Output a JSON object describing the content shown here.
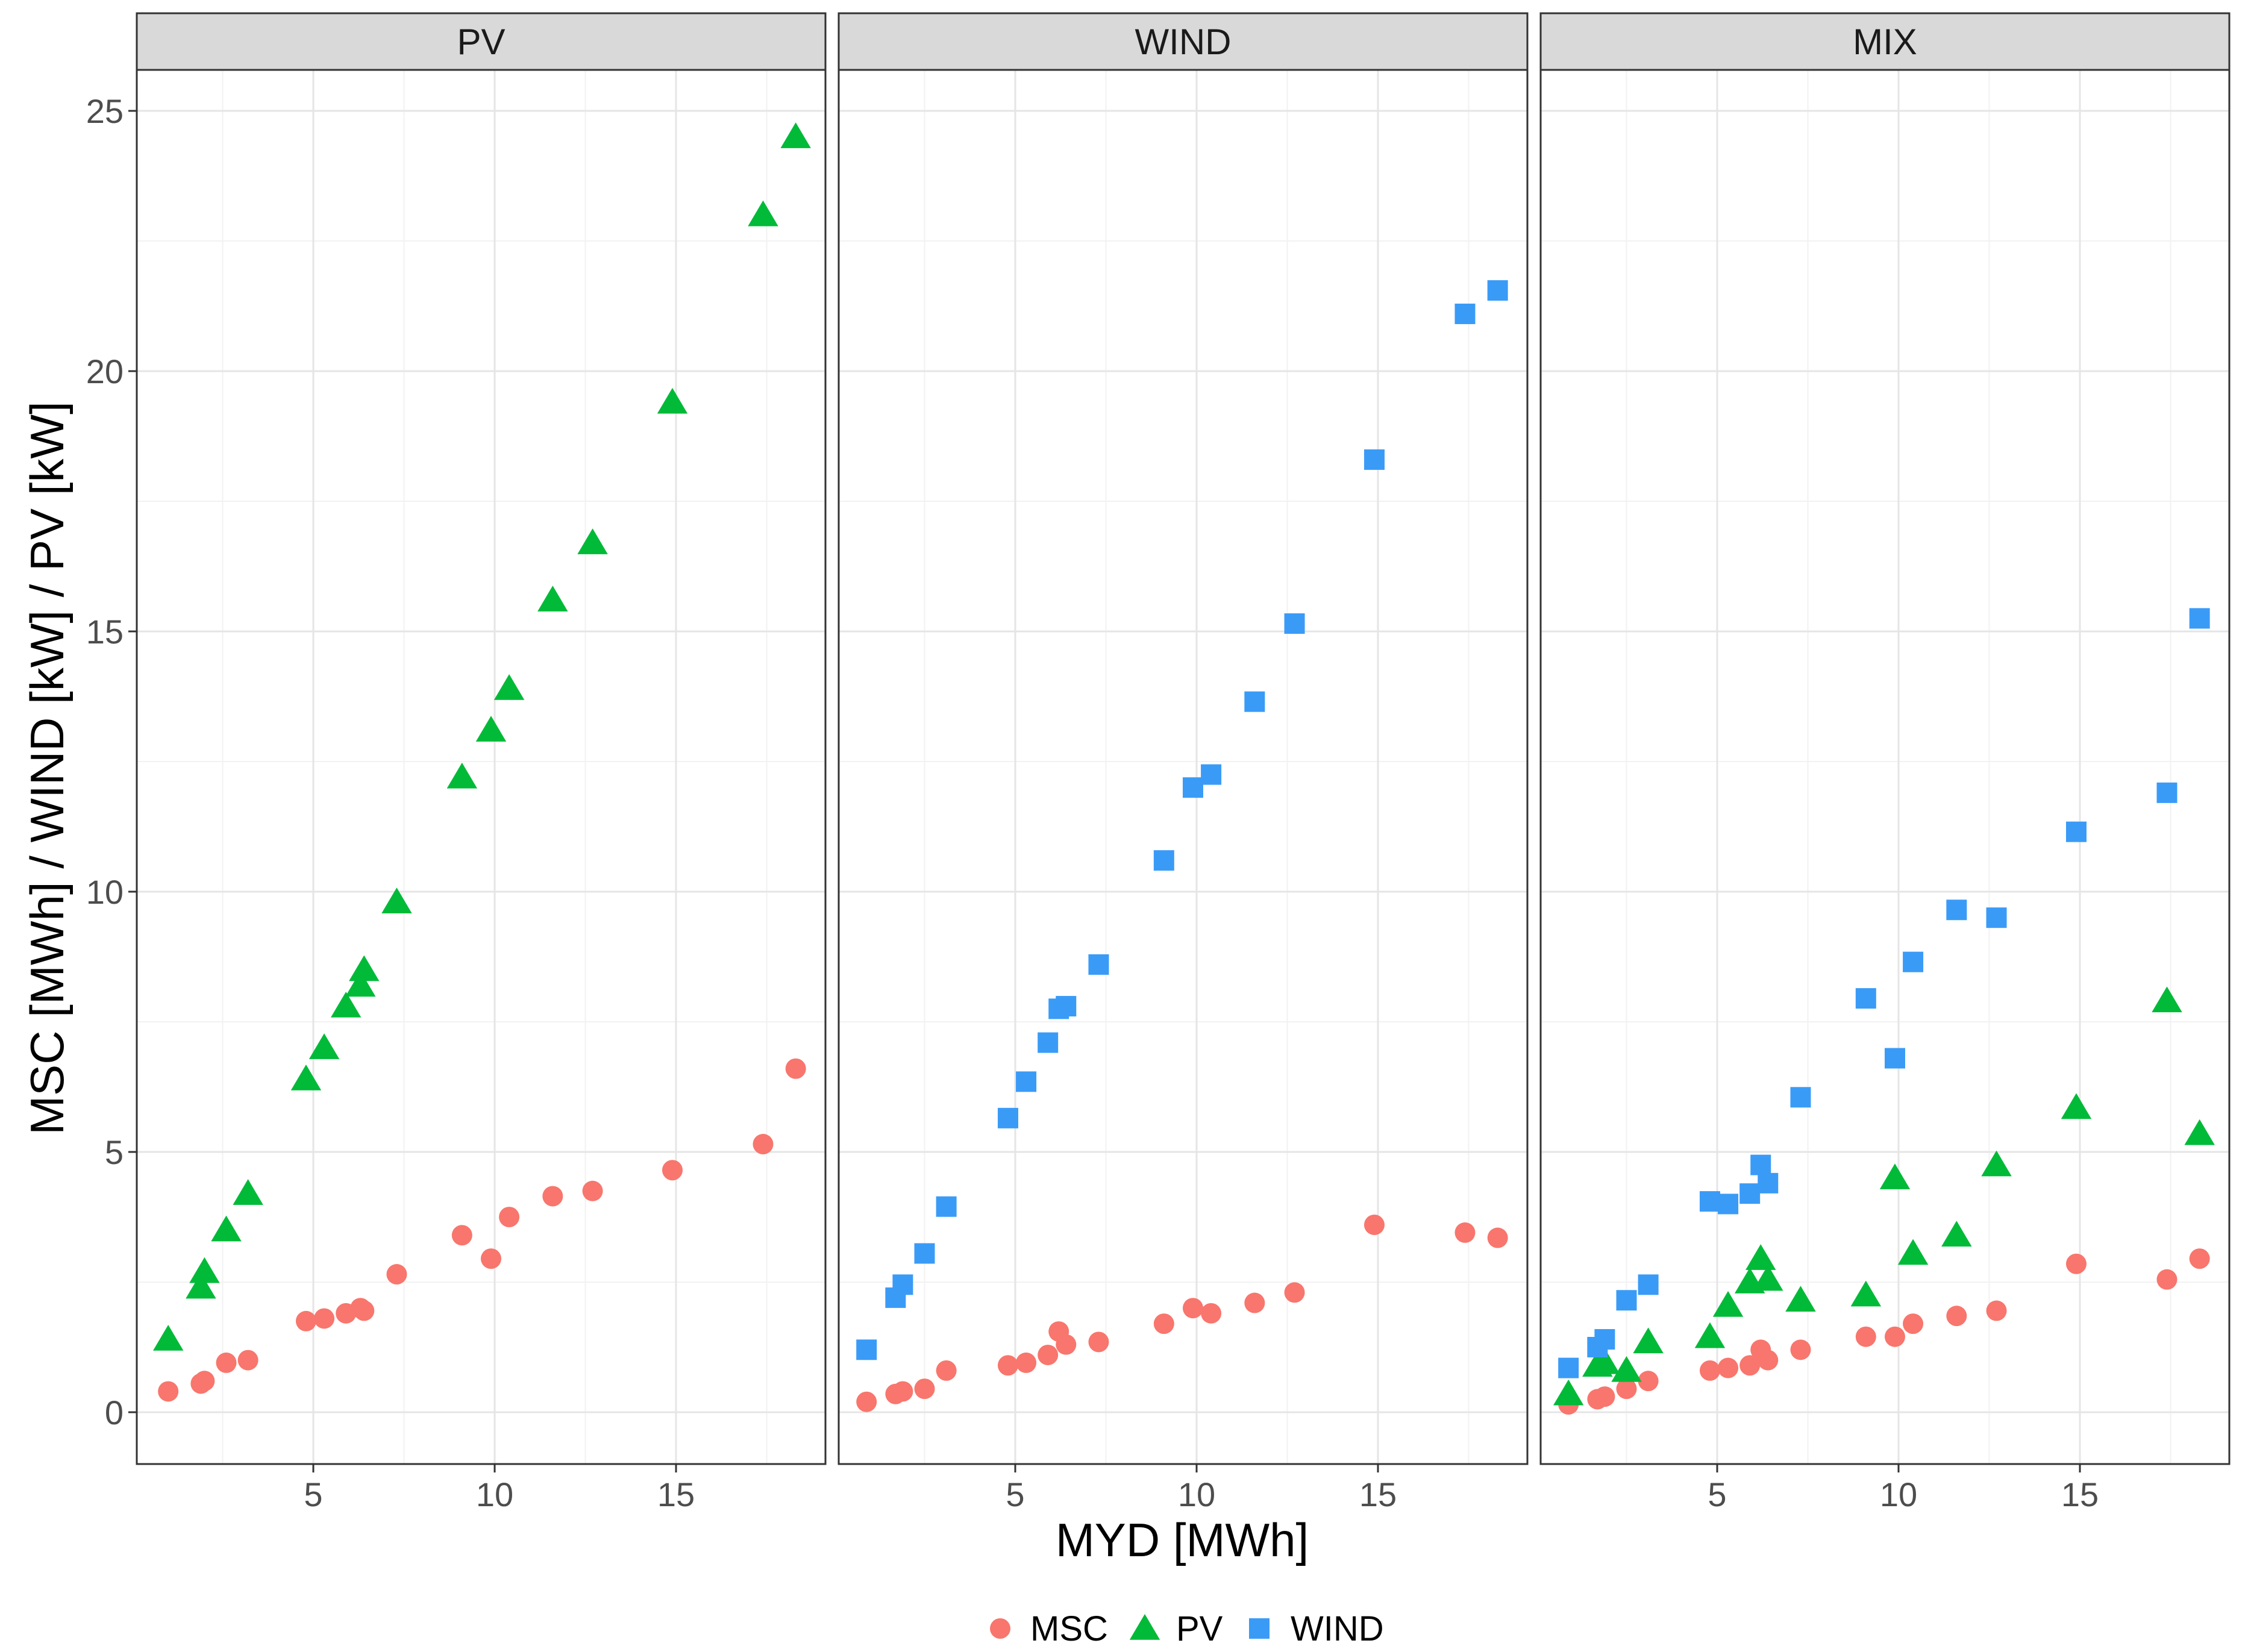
{
  "chart_data": {
    "type": "scatter",
    "facets": [
      "PV",
      "WIND",
      "MIX"
    ],
    "xlabel": "MYD [MWh]",
    "ylabel": "MSC [MWh] / WIND [kW] / PV [kW]",
    "xlim": [
      0.2,
      18.8
    ],
    "ylim": [
      -1.0,
      26.0
    ],
    "xticks": [
      5,
      10,
      15
    ],
    "yticks": [
      0,
      5,
      10,
      15,
      20,
      25
    ],
    "legend": {
      "placement": "bottom",
      "items": [
        {
          "label": "MSC",
          "shape": "circle",
          "color": "#F8766D"
        },
        {
          "label": "PV",
          "shape": "triangle",
          "color": "#00BA38"
        },
        {
          "label": "WIND",
          "shape": "square",
          "color": "#3A9BF7"
        }
      ]
    },
    "panels": [
      {
        "facet": "PV",
        "series": [
          {
            "name": "MSC",
            "points": [
              [
                1.0,
                0.4
              ],
              [
                1.9,
                0.55
              ],
              [
                2.0,
                0.6
              ],
              [
                2.6,
                0.95
              ],
              [
                3.2,
                1.0
              ],
              [
                4.8,
                1.75
              ],
              [
                5.3,
                1.8
              ],
              [
                5.9,
                1.9
              ],
              [
                6.3,
                2.0
              ],
              [
                6.4,
                1.95
              ],
              [
                7.3,
                2.65
              ],
              [
                9.1,
                3.4
              ],
              [
                9.9,
                2.95
              ],
              [
                10.4,
                3.75
              ],
              [
                11.6,
                4.15
              ],
              [
                12.7,
                4.25
              ],
              [
                14.9,
                4.65
              ],
              [
                17.4,
                5.15
              ],
              [
                18.3,
                6.6
              ]
            ]
          },
          {
            "name": "PV",
            "points": [
              [
                1.0,
                1.4
              ],
              [
                1.9,
                2.4
              ],
              [
                2.0,
                2.7
              ],
              [
                2.6,
                3.5
              ],
              [
                3.2,
                4.2
              ],
              [
                4.8,
                6.4
              ],
              [
                5.3,
                7.0
              ],
              [
                5.9,
                7.8
              ],
              [
                6.3,
                8.2
              ],
              [
                6.4,
                8.5
              ],
              [
                7.3,
                9.8
              ],
              [
                9.1,
                12.2
              ],
              [
                9.9,
                13.1
              ],
              [
                10.4,
                13.9
              ],
              [
                11.6,
                15.6
              ],
              [
                12.7,
                16.7
              ],
              [
                14.9,
                19.4
              ],
              [
                17.4,
                23.0
              ],
              [
                18.3,
                24.5
              ]
            ]
          }
        ]
      },
      {
        "facet": "WIND",
        "series": [
          {
            "name": "MSC",
            "points": [
              [
                0.9,
                0.2
              ],
              [
                1.7,
                0.35
              ],
              [
                1.9,
                0.4
              ],
              [
                2.5,
                0.45
              ],
              [
                3.1,
                0.8
              ],
              [
                4.8,
                0.9
              ],
              [
                5.3,
                0.95
              ],
              [
                5.9,
                1.1
              ],
              [
                6.2,
                1.55
              ],
              [
                6.4,
                1.3
              ],
              [
                7.3,
                1.35
              ],
              [
                9.1,
                1.7
              ],
              [
                9.9,
                2.0
              ],
              [
                10.4,
                1.9
              ],
              [
                11.6,
                2.1
              ],
              [
                12.7,
                2.3
              ],
              [
                14.9,
                3.6
              ],
              [
                17.4,
                3.45
              ],
              [
                18.3,
                3.35
              ]
            ]
          },
          {
            "name": "WIND",
            "points": [
              [
                0.9,
                1.2
              ],
              [
                1.7,
                2.2
              ],
              [
                1.9,
                2.45
              ],
              [
                2.5,
                3.05
              ],
              [
                3.1,
                3.95
              ],
              [
                4.8,
                5.65
              ],
              [
                5.3,
                6.35
              ],
              [
                5.9,
                7.1
              ],
              [
                6.2,
                7.75
              ],
              [
                6.4,
                7.8
              ],
              [
                7.3,
                8.6
              ],
              [
                9.1,
                10.6
              ],
              [
                9.9,
                12.0
              ],
              [
                10.4,
                12.25
              ],
              [
                11.6,
                13.65
              ],
              [
                12.7,
                15.15
              ],
              [
                14.9,
                18.3
              ],
              [
                17.4,
                21.1
              ],
              [
                18.3,
                21.55
              ]
            ]
          }
        ]
      },
      {
        "facet": "MIX",
        "series": [
          {
            "name": "MSC",
            "points": [
              [
                0.9,
                0.15
              ],
              [
                1.7,
                0.25
              ],
              [
                1.9,
                0.3
              ],
              [
                2.5,
                0.45
              ],
              [
                3.1,
                0.6
              ],
              [
                4.8,
                0.8
              ],
              [
                5.3,
                0.85
              ],
              [
                5.9,
                0.9
              ],
              [
                6.2,
                1.2
              ],
              [
                6.4,
                1.0
              ],
              [
                7.3,
                1.2
              ],
              [
                9.1,
                1.45
              ],
              [
                9.9,
                1.45
              ],
              [
                10.4,
                1.7
              ],
              [
                11.6,
                1.85
              ],
              [
                12.7,
                1.95
              ],
              [
                14.9,
                2.85
              ],
              [
                17.4,
                2.55
              ],
              [
                18.3,
                2.95
              ]
            ]
          },
          {
            "name": "PV",
            "points": [
              [
                0.9,
                0.35
              ],
              [
                1.7,
                0.9
              ],
              [
                1.9,
                0.95
              ],
              [
                2.5,
                0.8
              ],
              [
                3.1,
                1.35
              ],
              [
                4.8,
                1.45
              ],
              [
                5.3,
                2.05
              ],
              [
                5.9,
                2.5
              ],
              [
                6.2,
                2.95
              ],
              [
                6.4,
                2.55
              ],
              [
                7.3,
                2.15
              ],
              [
                9.1,
                2.25
              ],
              [
                9.9,
                4.5
              ],
              [
                10.4,
                3.05
              ],
              [
                11.6,
                3.4
              ],
              [
                12.7,
                4.75
              ],
              [
                14.9,
                5.85
              ],
              [
                17.4,
                7.9
              ],
              [
                18.3,
                5.35
              ]
            ]
          },
          {
            "name": "WIND",
            "points": [
              [
                0.9,
                0.85
              ],
              [
                1.7,
                1.25
              ],
              [
                1.9,
                1.4
              ],
              [
                2.5,
                2.15
              ],
              [
                3.1,
                2.45
              ],
              [
                4.8,
                4.05
              ],
              [
                5.3,
                4.0
              ],
              [
                5.9,
                4.2
              ],
              [
                6.2,
                4.75
              ],
              [
                6.4,
                4.4
              ],
              [
                7.3,
                6.05
              ],
              [
                9.1,
                7.95
              ],
              [
                9.9,
                6.8
              ],
              [
                10.4,
                8.65
              ],
              [
                11.6,
                9.65
              ],
              [
                12.7,
                9.5
              ],
              [
                14.9,
                11.15
              ],
              [
                17.4,
                11.9
              ],
              [
                18.3,
                15.25
              ]
            ]
          }
        ]
      }
    ]
  }
}
